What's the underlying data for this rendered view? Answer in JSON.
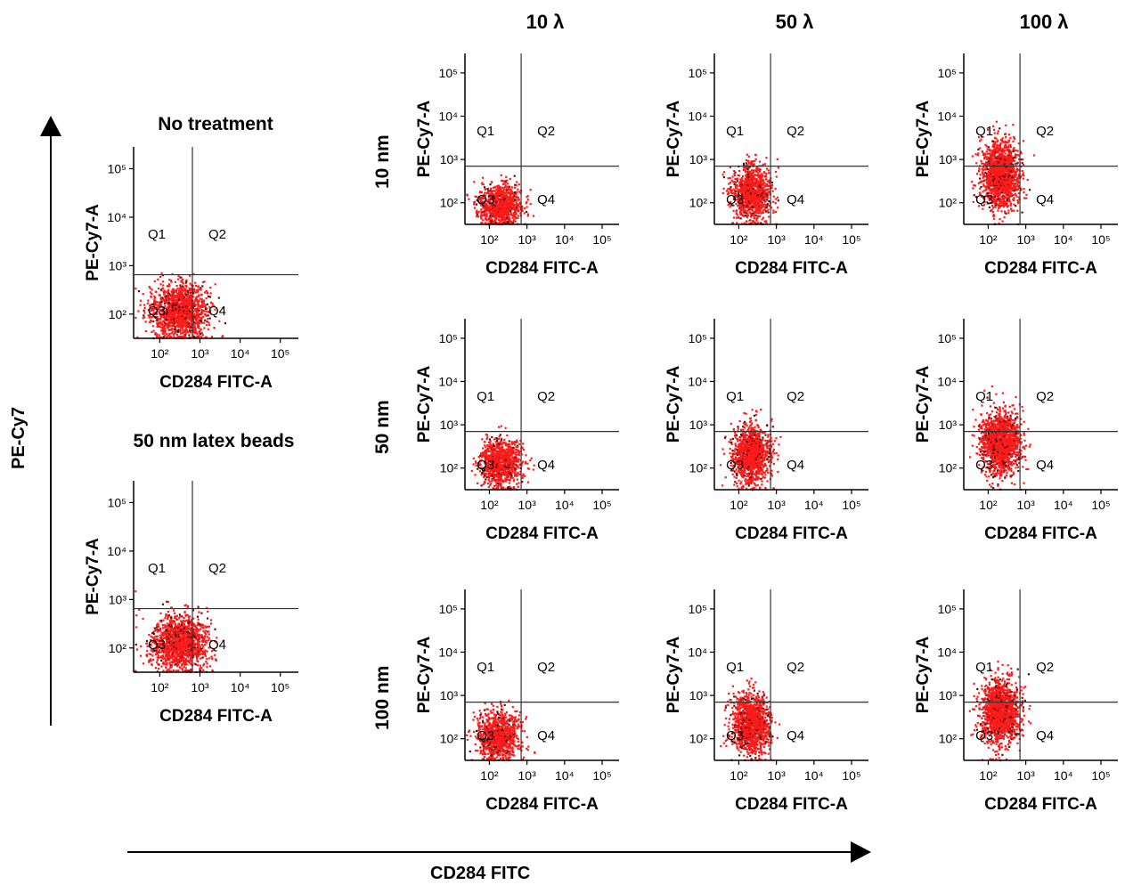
{
  "column_headers": [
    "10 λ",
    "50 λ",
    "100 λ"
  ],
  "row_labels": [
    "10 nm",
    "50 nm",
    "100 nm"
  ],
  "control_titles": [
    "No treatment",
    "50 nm latex beads"
  ],
  "big_axes": {
    "y_label": "PE-Cy7",
    "x_label": "CD284 FITC"
  },
  "colors": {
    "dots": "#ff1a1a",
    "dots_dark": "#5a1010",
    "axis": "#000000",
    "gate": "#333333"
  },
  "chart_data": [
    {
      "type": "scatter",
      "title": "No treatment",
      "panel": "control-no-treatment",
      "xlabel": "CD284 FITC-A",
      "ylabel": "PE-Cy7-A",
      "xscale": "log",
      "yscale": "log",
      "xticks": [
        "10²",
        "10³",
        "10⁴",
        "10⁵"
      ],
      "yticks": [
        "10²",
        "10³",
        "10⁴",
        "10⁵"
      ],
      "quadrants": [
        "Q1",
        "Q2",
        "Q3",
        "Q4"
      ],
      "gate": {
        "x": 650,
        "y": 650
      },
      "cloud": {
        "cx": 300,
        "cy": 120,
        "sx": 2.8,
        "sy": 2.4,
        "n": 1400
      }
    },
    {
      "type": "scatter",
      "title": "50 nm latex beads",
      "panel": "control-latex-beads",
      "xlabel": "CD284 FITC-A",
      "ylabel": "PE-Cy7-A",
      "xscale": "log",
      "yscale": "log",
      "xticks": [
        "10²",
        "10³",
        "10⁴",
        "10⁵"
      ],
      "yticks": [
        "10²",
        "10³",
        "10⁴",
        "10⁵"
      ],
      "quadrants": [
        "Q1",
        "Q2",
        "Q3",
        "Q4"
      ],
      "gate": {
        "x": 650,
        "y": 650
      },
      "cloud": {
        "cx": 320,
        "cy": 130,
        "sx": 2.8,
        "sy": 2.4,
        "n": 1400
      }
    },
    {
      "type": "scatter",
      "panel": "10nm-10λ",
      "xlabel": "CD284 FITC-A",
      "ylabel": "PE-Cy7-A",
      "xscale": "log",
      "yscale": "log",
      "xticks": [
        "10²",
        "10³",
        "10⁴",
        "10⁵"
      ],
      "yticks": [
        "10²",
        "10³",
        "10⁴",
        "10⁵"
      ],
      "quadrants": [
        "Q1",
        "Q2",
        "Q3",
        "Q4"
      ],
      "gate": {
        "x": 700,
        "y": 700
      },
      "cloud": {
        "cx": 180,
        "cy": 90,
        "sx": 2.3,
        "sy": 2.0,
        "n": 900
      }
    },
    {
      "type": "scatter",
      "panel": "10nm-50λ",
      "xlabel": "CD284 FITC-A",
      "ylabel": "PE-Cy7-A",
      "xscale": "log",
      "yscale": "log",
      "xticks": [
        "10²",
        "10³",
        "10⁴",
        "10⁵"
      ],
      "yticks": [
        "10²",
        "10³",
        "10⁴",
        "10⁵"
      ],
      "quadrants": [
        "Q1",
        "Q2",
        "Q3",
        "Q4"
      ],
      "gate": {
        "x": 700,
        "y": 700
      },
      "cloud": {
        "cx": 200,
        "cy": 180,
        "sx": 2.0,
        "sy": 2.8,
        "n": 1100
      }
    },
    {
      "type": "scatter",
      "panel": "10nm-100λ",
      "xlabel": "CD284 FITC-A",
      "ylabel": "PE-Cy7-A",
      "xscale": "log",
      "yscale": "log",
      "xticks": [
        "10²",
        "10³",
        "10⁴",
        "10⁵"
      ],
      "yticks": [
        "10²",
        "10³",
        "10⁴",
        "10⁵"
      ],
      "quadrants": [
        "Q1",
        "Q2",
        "Q3",
        "Q4"
      ],
      "gate": {
        "x": 700,
        "y": 700
      },
      "cloud": {
        "cx": 200,
        "cy": 450,
        "sx": 2.0,
        "sy": 3.2,
        "n": 1500
      }
    },
    {
      "type": "scatter",
      "panel": "50nm-10λ",
      "xlabel": "CD284 FITC-A",
      "ylabel": "PE-Cy7-A",
      "xscale": "log",
      "yscale": "log",
      "xticks": [
        "10²",
        "10³",
        "10⁴",
        "10⁵"
      ],
      "yticks": [
        "10²",
        "10³",
        "10⁴",
        "10⁵"
      ],
      "quadrants": [
        "Q1",
        "Q2",
        "Q3",
        "Q4"
      ],
      "gate": {
        "x": 700,
        "y": 700
      },
      "cloud": {
        "cx": 180,
        "cy": 140,
        "sx": 2.2,
        "sy": 2.4,
        "n": 1000
      }
    },
    {
      "type": "scatter",
      "panel": "50nm-50λ",
      "xlabel": "CD284 FITC-A",
      "ylabel": "PE-Cy7-A",
      "xscale": "log",
      "yscale": "log",
      "xticks": [
        "10²",
        "10³",
        "10⁴",
        "10⁵"
      ],
      "yticks": [
        "10²",
        "10³",
        "10⁴",
        "10⁵"
      ],
      "quadrants": [
        "Q1",
        "Q2",
        "Q3",
        "Q4"
      ],
      "gate": {
        "x": 700,
        "y": 700
      },
      "cloud": {
        "cx": 200,
        "cy": 220,
        "sx": 2.0,
        "sy": 2.9,
        "n": 1200
      }
    },
    {
      "type": "scatter",
      "panel": "50nm-100λ",
      "xlabel": "CD284 FITC-A",
      "ylabel": "PE-Cy7-A",
      "xscale": "log",
      "yscale": "log",
      "xticks": [
        "10²",
        "10³",
        "10⁴",
        "10⁵"
      ],
      "yticks": [
        "10²",
        "10³",
        "10⁴",
        "10⁵"
      ],
      "quadrants": [
        "Q1",
        "Q2",
        "Q3",
        "Q4"
      ],
      "gate": {
        "x": 700,
        "y": 700
      },
      "cloud": {
        "cx": 200,
        "cy": 400,
        "sx": 2.0,
        "sy": 3.0,
        "n": 1500
      }
    },
    {
      "type": "scatter",
      "panel": "100nm-10λ",
      "xlabel": "CD284 FITC-A",
      "ylabel": "PE-Cy7-A",
      "xscale": "log",
      "yscale": "log",
      "xticks": [
        "10²",
        "10³",
        "10⁴",
        "10⁵"
      ],
      "yticks": [
        "10²",
        "10³",
        "10⁴",
        "10⁵"
      ],
      "quadrants": [
        "Q1",
        "Q2",
        "Q3",
        "Q4"
      ],
      "gate": {
        "x": 700,
        "y": 700
      },
      "cloud": {
        "cx": 170,
        "cy": 120,
        "sx": 2.2,
        "sy": 2.3,
        "n": 1000
      }
    },
    {
      "type": "scatter",
      "panel": "100nm-50λ",
      "xlabel": "CD284 FITC-A",
      "ylabel": "PE-Cy7-A",
      "xscale": "log",
      "yscale": "log",
      "xticks": [
        "10²",
        "10³",
        "10⁴",
        "10⁵"
      ],
      "yticks": [
        "10²",
        "10³",
        "10⁴",
        "10⁵"
      ],
      "quadrants": [
        "Q1",
        "Q2",
        "Q3",
        "Q4"
      ],
      "gate": {
        "x": 700,
        "y": 700
      },
      "cloud": {
        "cx": 200,
        "cy": 230,
        "sx": 2.0,
        "sy": 2.9,
        "n": 1300
      }
    },
    {
      "type": "scatter",
      "panel": "100nm-100λ",
      "xlabel": "CD284 FITC-A",
      "ylabel": "PE-Cy7-A",
      "xscale": "log",
      "yscale": "log",
      "xticks": [
        "10²",
        "10³",
        "10⁴",
        "10⁵"
      ],
      "yticks": [
        "10²",
        "10³",
        "10⁴",
        "10⁵"
      ],
      "quadrants": [
        "Q1",
        "Q2",
        "Q3",
        "Q4"
      ],
      "gate": {
        "x": 700,
        "y": 700
      },
      "cloud": {
        "cx": 200,
        "cy": 420,
        "sx": 2.0,
        "sy": 3.0,
        "n": 1500
      }
    }
  ]
}
